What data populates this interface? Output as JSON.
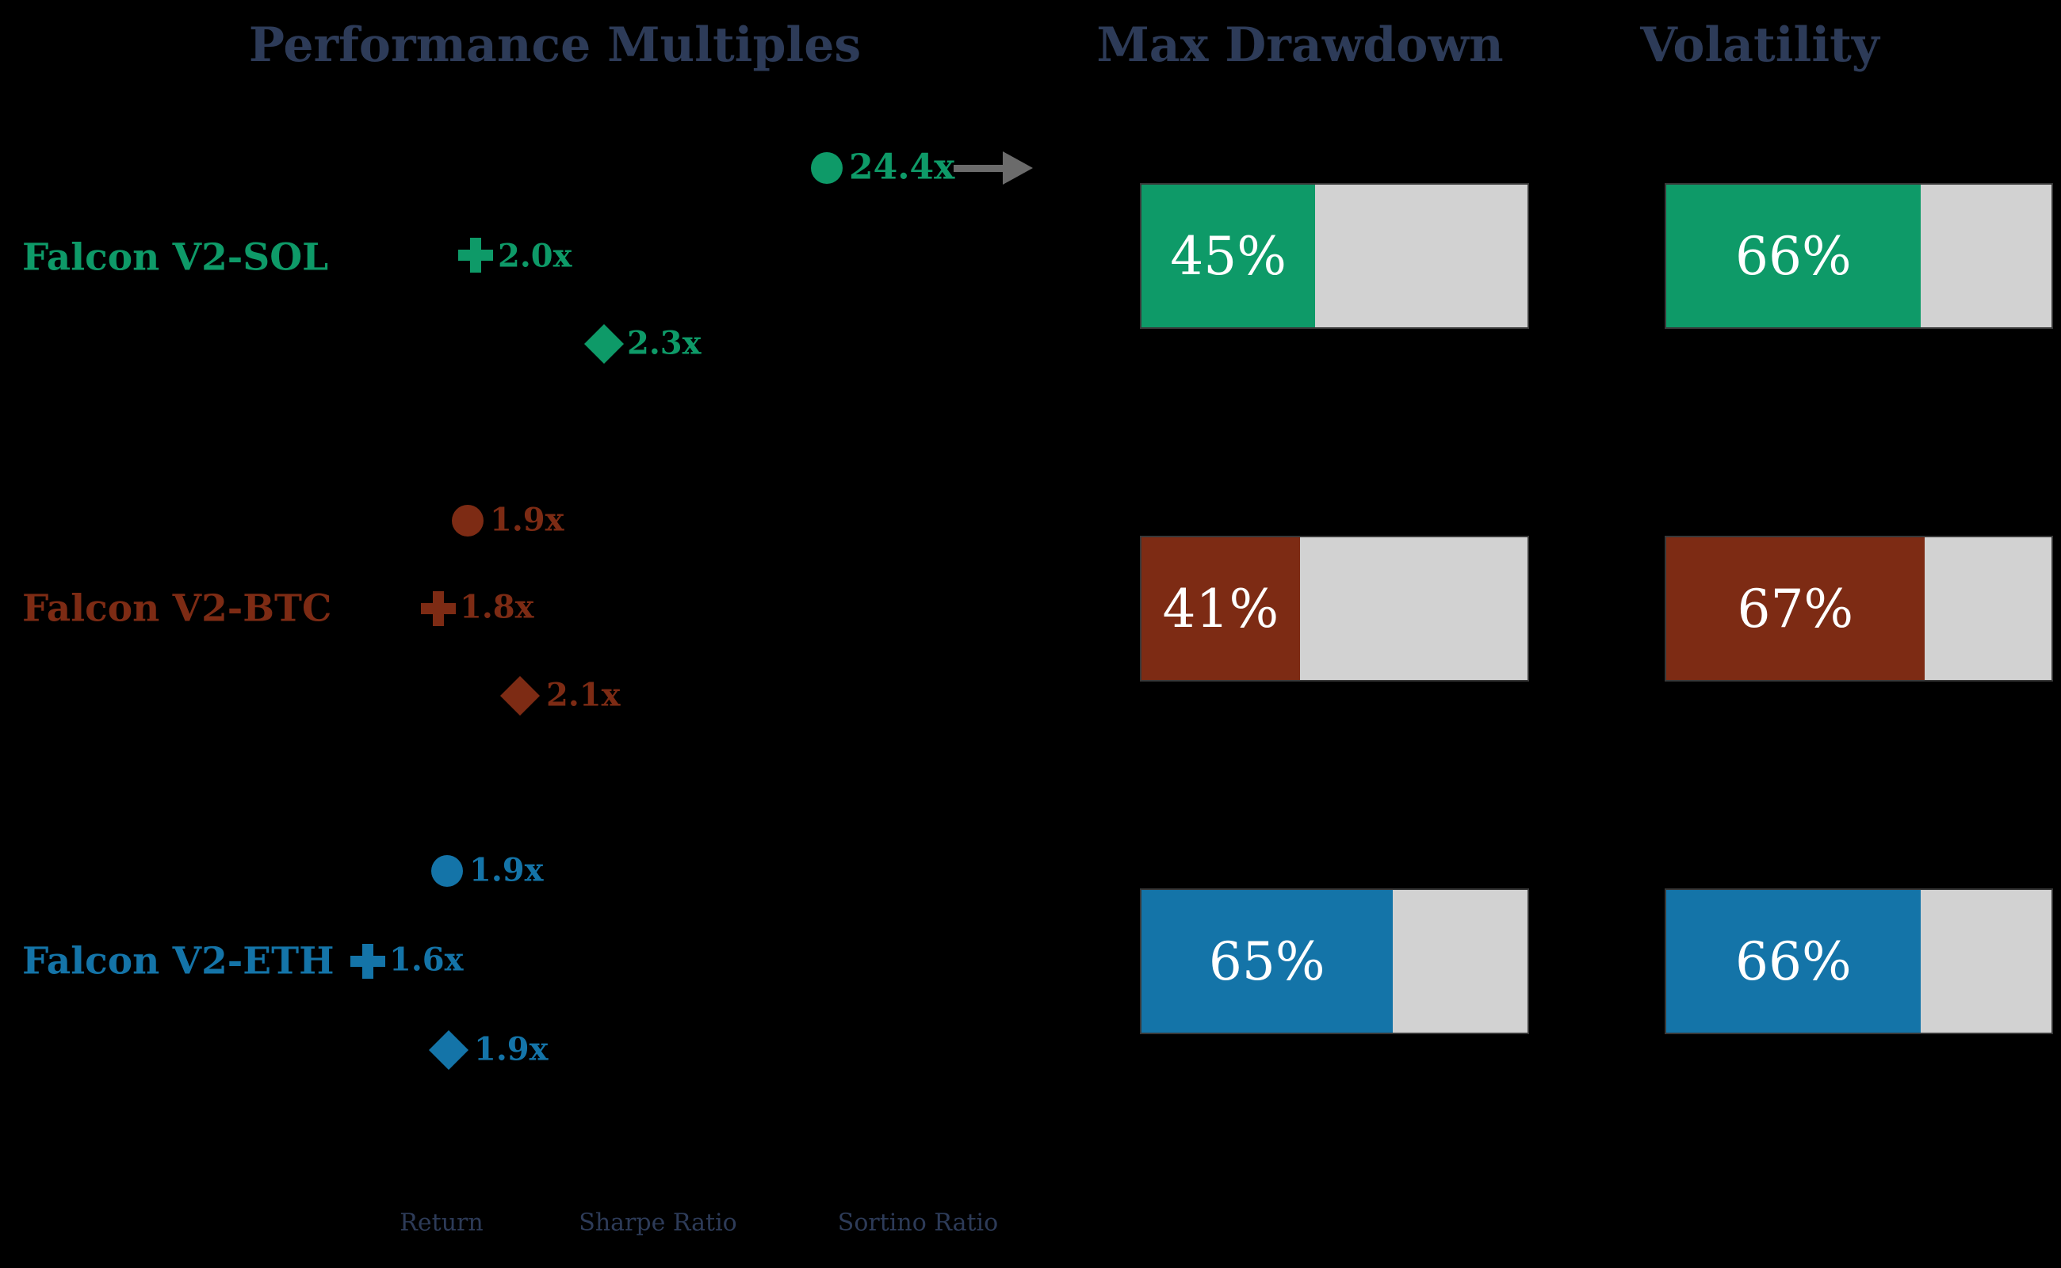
{
  "colors": {
    "background": "#000000",
    "heading": "#2d3b58",
    "legend_text": "#2d3b58",
    "track": "#d2d2d2",
    "bar_value_text": "#ffffff",
    "arrow": "#6b6b6b",
    "sol": "#0e9a68",
    "btc": "#7d2b14",
    "eth": "#1474a8"
  },
  "headers": {
    "performance": "Performance Multiples",
    "max_drawdown": "Max Drawdown",
    "volatility": "Volatility"
  },
  "legend": {
    "return": "Return",
    "sharpe": "Sharpe Ratio",
    "sortino": "Sortino Ratio"
  },
  "rows": [
    {
      "label": "Falcon V2-SOL",
      "return_multiple": "24.4x",
      "sharpe_multiple": "2.0x",
      "sortino_multiple": "2.3x",
      "return_off_scale": true,
      "max_drawdown_label": "45%",
      "max_drawdown_pct": 45,
      "volatility_label": "66%",
      "volatility_pct": 66
    },
    {
      "label": "Falcon V2-BTC",
      "return_multiple": "1.9x",
      "sharpe_multiple": "1.8x",
      "sortino_multiple": "2.1x",
      "return_off_scale": false,
      "max_drawdown_label": "41%",
      "max_drawdown_pct": 41,
      "volatility_label": "67%",
      "volatility_pct": 67
    },
    {
      "label": "Falcon V2-ETH",
      "return_multiple": "1.9x",
      "sharpe_multiple": "1.6x",
      "sortino_multiple": "1.9x",
      "return_off_scale": false,
      "max_drawdown_label": "65%",
      "max_drawdown_pct": 65,
      "volatility_label": "66%",
      "volatility_pct": 66
    }
  ],
  "chart_data": [
    {
      "type": "scatter",
      "title": "Performance Multiples",
      "categories": [
        "Falcon V2-SOL",
        "Falcon V2-BTC",
        "Falcon V2-ETH"
      ],
      "series": [
        {
          "name": "Return",
          "marker": "circle",
          "values": [
            24.4,
            1.9,
            1.9
          ],
          "unit": "x"
        },
        {
          "name": "Sharpe Ratio",
          "marker": "plus",
          "values": [
            2.0,
            1.8,
            1.6
          ],
          "unit": "x"
        },
        {
          "name": "Sortino Ratio",
          "marker": "diamond",
          "values": [
            2.3,
            2.1,
            1.9
          ],
          "unit": "x"
        }
      ],
      "annotations": [
        {
          "series": "Return",
          "category": "Falcon V2-SOL",
          "text": "24.4x",
          "note": "off-scale value marked with right-pointing arrow"
        }
      ],
      "legend_position": "bottom",
      "grid": false
    },
    {
      "type": "bar",
      "title": "Max Drawdown",
      "orientation": "horizontal",
      "categories": [
        "Falcon V2-SOL",
        "Falcon V2-BTC",
        "Falcon V2-ETH"
      ],
      "values": [
        45,
        41,
        65
      ],
      "unit": "%",
      "xlim": [
        0,
        100
      ],
      "note": "colored fill over full-width light gray track, value label centered in fill"
    },
    {
      "type": "bar",
      "title": "Volatility",
      "orientation": "horizontal",
      "categories": [
        "Falcon V2-SOL",
        "Falcon V2-BTC",
        "Falcon V2-ETH"
      ],
      "values": [
        66,
        67,
        66
      ],
      "unit": "%",
      "xlim": [
        0,
        100
      ],
      "note": "colored fill over full-width light gray track, value label centered in fill"
    }
  ]
}
